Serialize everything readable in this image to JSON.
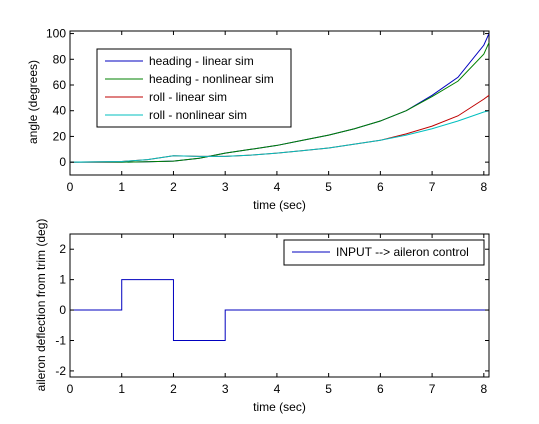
{
  "chart_data": [
    {
      "type": "line",
      "xlabel": "time (sec)",
      "ylabel": "angle (degrees)",
      "xlim": [
        0,
        8.1
      ],
      "ylim": [
        -10,
        102
      ],
      "xticks": [
        0,
        1,
        2,
        3,
        4,
        5,
        6,
        7,
        8
      ],
      "yticks": [
        0,
        20,
        40,
        60,
        80,
        100
      ],
      "grid": false,
      "legend_position": "top-left",
      "series": [
        {
          "name": "heading - linear sim",
          "color": "#0000bf",
          "points": [
            [
              0,
              0
            ],
            [
              1,
              0
            ],
            [
              1.5,
              0.3
            ],
            [
              2,
              0.8
            ],
            [
              2.5,
              3
            ],
            [
              3,
              7
            ],
            [
              3.5,
              10
            ],
            [
              4,
              13
            ],
            [
              4.5,
              17
            ],
            [
              5,
              21
            ],
            [
              5.5,
              26
            ],
            [
              6,
              32
            ],
            [
              6.5,
              40
            ],
            [
              7,
              52
            ],
            [
              7.5,
              66
            ],
            [
              8,
              91
            ],
            [
              8.1,
              100
            ]
          ]
        },
        {
          "name": "heading - nonlinear sim",
          "color": "#008000",
          "points": [
            [
              0,
              0
            ],
            [
              1,
              0
            ],
            [
              1.5,
              0.3
            ],
            [
              2,
              0.8
            ],
            [
              2.5,
              3
            ],
            [
              3,
              7
            ],
            [
              3.5,
              10
            ],
            [
              4,
              13
            ],
            [
              4.5,
              17
            ],
            [
              5,
              21
            ],
            [
              5.5,
              26
            ],
            [
              6,
              32
            ],
            [
              6.5,
              40
            ],
            [
              7,
              51
            ],
            [
              7.5,
              63
            ],
            [
              8,
              84
            ],
            [
              8.1,
              93
            ]
          ]
        },
        {
          "name": "roll - linear sim",
          "color": "#bf0000",
          "points": [
            [
              0,
              0
            ],
            [
              1,
              0.5
            ],
            [
              1.5,
              2
            ],
            [
              2,
              5
            ],
            [
              2.5,
              4.5
            ],
            [
              3,
              4.5
            ],
            [
              3.5,
              5.5
            ],
            [
              4,
              7
            ],
            [
              4.5,
              9
            ],
            [
              5,
              11
            ],
            [
              5.5,
              14
            ],
            [
              6,
              17
            ],
            [
              6.5,
              22
            ],
            [
              7,
              28
            ],
            [
              7.5,
              36
            ],
            [
              8,
              49
            ],
            [
              8.1,
              52
            ]
          ]
        },
        {
          "name": "roll - nonlinear sim",
          "color": "#00bfbf",
          "points": [
            [
              0,
              0
            ],
            [
              1,
              0.5
            ],
            [
              1.5,
              2
            ],
            [
              2,
              5
            ],
            [
              2.5,
              4.5
            ],
            [
              3,
              4.5
            ],
            [
              3.5,
              5.5
            ],
            [
              4,
              7
            ],
            [
              4.5,
              9
            ],
            [
              5,
              11
            ],
            [
              5.5,
              14
            ],
            [
              6,
              17
            ],
            [
              6.5,
              21
            ],
            [
              7,
              26
            ],
            [
              7.5,
              32
            ],
            [
              8,
              39
            ],
            [
              8.1,
              40
            ]
          ]
        }
      ]
    },
    {
      "type": "line",
      "xlabel": "time (sec)",
      "ylabel": "aileron deflection from trim (deg)",
      "xlim": [
        0,
        8.1
      ],
      "ylim": [
        -2.2,
        2.5
      ],
      "xticks": [
        0,
        1,
        2,
        3,
        4,
        5,
        6,
        7,
        8
      ],
      "yticks": [
        -2,
        -1,
        0,
        1,
        2
      ],
      "grid": false,
      "legend_position": "top-right",
      "series": [
        {
          "name": "INPUT --> aileron control",
          "color": "#0000bf",
          "points": [
            [
              0,
              0
            ],
            [
              1,
              0
            ],
            [
              1,
              1
            ],
            [
              2,
              1
            ],
            [
              2,
              -1
            ],
            [
              3,
              -1
            ],
            [
              3,
              0
            ],
            [
              8.1,
              0
            ]
          ]
        }
      ]
    }
  ]
}
